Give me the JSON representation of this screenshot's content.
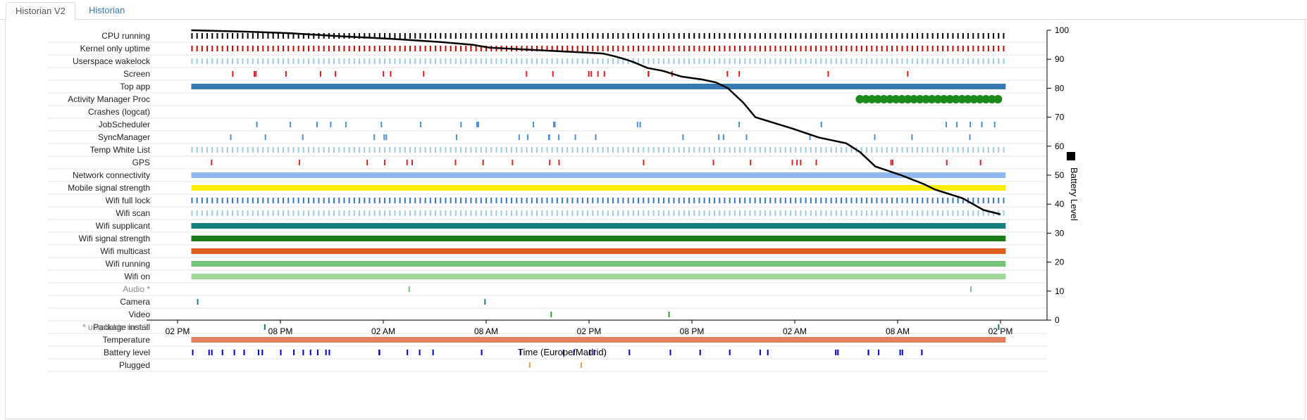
{
  "tabs": [
    {
      "label": "Historian V2",
      "active": true
    },
    {
      "label": "Historian",
      "active": false
    }
  ],
  "chart_data": {
    "type": "timeline",
    "rows": [
      {
        "label": "CPU running",
        "color": "#000000",
        "style": "ticks"
      },
      {
        "label": "Kernel only uptime",
        "color": "#cc0000",
        "style": "ticks"
      },
      {
        "label": "Userspace wakelock",
        "color": "#9ecae1",
        "style": "ticks"
      },
      {
        "label": "Screen",
        "color": "#e41a1c",
        "style": "sparse"
      },
      {
        "label": "Top app",
        "color": "#3778b4",
        "style": "bar"
      },
      {
        "label": "Activity Manager Proc",
        "color": "#1a8a1a",
        "style": "dots"
      },
      {
        "label": "Crashes (logcat)",
        "color": "#000000",
        "style": "none"
      },
      {
        "label": "JobScheduler",
        "color": "#4a90d9",
        "style": "sparse"
      },
      {
        "label": "SyncManager",
        "color": "#4a90d9",
        "style": "sparse"
      },
      {
        "label": "Temp White List",
        "color": "#9ecae1",
        "style": "ticks"
      },
      {
        "label": "GPS",
        "color": "#d62728",
        "style": "sparse"
      },
      {
        "label": "Network connectivity",
        "color": "#8fb8ee",
        "style": "bar"
      },
      {
        "label": "Mobile signal strength",
        "color": "#ffee00",
        "style": "bar"
      },
      {
        "label": "Wifi full lock",
        "color": "#3778b4",
        "style": "ticks"
      },
      {
        "label": "Wifi scan",
        "color": "#9ecae1",
        "style": "ticks"
      },
      {
        "label": "Wifi supplicant",
        "color": "#17807e",
        "style": "bar"
      },
      {
        "label": "Wifi signal strength",
        "color": "#1a7a1a",
        "style": "bar"
      },
      {
        "label": "Wifi multicast",
        "color": "#d95f1a",
        "style": "bar"
      },
      {
        "label": "Wifi running",
        "color": "#74c476",
        "style": "bar"
      },
      {
        "label": "Wifi on",
        "color": "#a1d99b",
        "style": "bar"
      },
      {
        "label": "Audio *",
        "color": "#74c476",
        "style": "sparse",
        "unreliable": true
      },
      {
        "label": "Camera",
        "color": "#17807e",
        "style": "sparse"
      },
      {
        "label": "Video",
        "color": "#2ca02c",
        "style": "sparse"
      },
      {
        "label": "Package install",
        "color": "#17807e",
        "style": "sparse"
      },
      {
        "label": "Temperature",
        "color": "#e08060",
        "style": "bar"
      },
      {
        "label": "Battery level",
        "color": "#0000cc",
        "style": "sparse"
      },
      {
        "label": "Plugged",
        "color": "#f0a030",
        "style": "sparse"
      }
    ],
    "footnote": "* unreliable metric",
    "xlabel": "Time (Europe/Madrid)",
    "xticks": [
      "02 PM",
      "08 PM",
      "02 AM",
      "08 AM",
      "02 PM",
      "08 PM",
      "02 AM",
      "08 AM",
      "02 PM"
    ],
    "y2label": "Battery Level",
    "y2ticks": [
      0,
      10,
      20,
      30,
      40,
      50,
      60,
      70,
      80,
      90,
      100
    ],
    "y2lim": [
      0,
      100
    ],
    "battery_series": {
      "name": "Battery Level",
      "x_hours_from_first_tick": [
        0.8,
        4,
        6.5,
        9.3,
        12.6,
        15.2,
        17.2,
        18.2,
        21.5,
        24.8,
        25.5,
        26.1,
        26.6,
        27.0,
        27.4,
        28.3,
        29.4,
        30.6,
        31.4,
        32.1,
        33.0,
        33.7,
        35.9,
        37.4,
        39.0,
        39.8,
        40.7,
        42.2,
        43.5,
        44.2,
        45.8,
        47.0,
        48.0
      ],
      "values": [
        100,
        99.5,
        99,
        98,
        97,
        96,
        95,
        94,
        93,
        92,
        91,
        90,
        89,
        88,
        87,
        86,
        84,
        83,
        82,
        80,
        75,
        70,
        66,
        63,
        61,
        58,
        53,
        50,
        47,
        45,
        42,
        38,
        36.5
      ]
    }
  }
}
